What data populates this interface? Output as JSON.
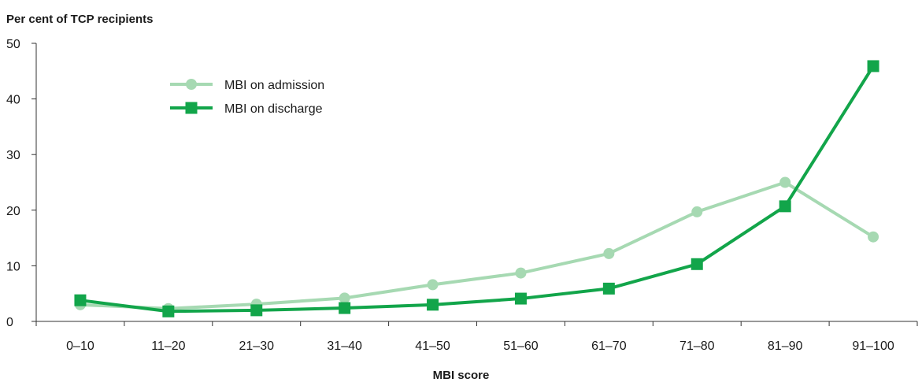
{
  "chart_data": {
    "type": "line",
    "title": "",
    "ylabel": "Per cent of TCP recipients",
    "xlabel": "MBI score",
    "categories": [
      "0–10",
      "11–20",
      "21–30",
      "31–40",
      "41–50",
      "51–60",
      "61–70",
      "71–80",
      "81–90",
      "91–100"
    ],
    "ylim": [
      0,
      50
    ],
    "yticks": [
      0,
      10,
      20,
      30,
      40,
      50
    ],
    "grid": false,
    "legend_position": "top-left",
    "series": [
      {
        "name": "MBI on admission",
        "color": "#a6d9b2",
        "marker": "circle",
        "values": [
          3.0,
          2.3,
          3.1,
          4.2,
          6.6,
          8.7,
          12.2,
          19.7,
          25.0,
          15.2
        ]
      },
      {
        "name": "MBI on discharge",
        "color": "#12a54a",
        "marker": "square",
        "values": [
          3.8,
          1.8,
          2.0,
          2.4,
          3.0,
          4.1,
          5.9,
          10.3,
          20.7,
          45.9
        ]
      }
    ]
  }
}
